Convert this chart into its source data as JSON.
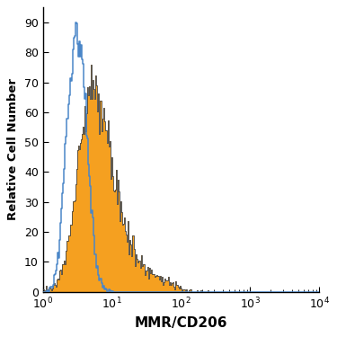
{
  "title": "",
  "xlabel": "MMR/CD206",
  "ylabel": "Relative Cell Number",
  "xlim_log": [
    0,
    4
  ],
  "ylim": [
    0,
    95
  ],
  "yticks": [
    0,
    10,
    20,
    30,
    40,
    50,
    60,
    70,
    80,
    90
  ],
  "blue_color": "#4a86c8",
  "orange_color": "#f5a020",
  "orange_edge_color": "#444444",
  "bg_color": "#ffffff",
  "blue_peak_log": 0.52,
  "blue_std_log": 0.13,
  "orange_peak_log": 0.82,
  "orange_std_log": 0.45
}
